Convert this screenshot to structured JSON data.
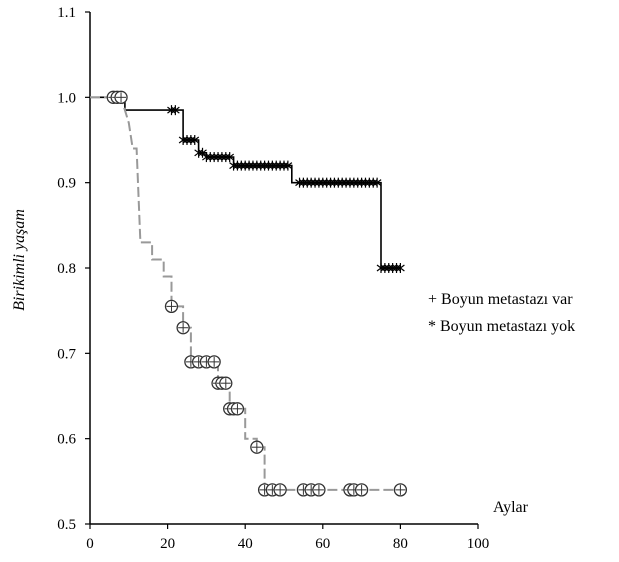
{
  "chart_data": {
    "type": "line",
    "xlabel": "Aylar",
    "ylabel": "Birikimli yaşam",
    "xlim": [
      0,
      100
    ],
    "ylim": [
      0.5,
      1.1
    ],
    "xticks": [
      "0",
      "20",
      "40",
      "60",
      "80",
      "100"
    ],
    "yticks": [
      "0.5",
      "0.6",
      "0.7",
      "0.8",
      "0.9",
      "1.0",
      "1.1"
    ],
    "legend": [
      "+ Boyun metastazı var",
      "* Boyun metastazı yok"
    ],
    "series": [
      {
        "style": "solid",
        "color": "#000000",
        "step": [
          [
            0,
            1.0
          ],
          [
            9,
            1.0
          ],
          [
            9,
            0.985
          ],
          [
            20,
            0.985
          ],
          [
            24,
            0.985
          ],
          [
            24,
            0.95
          ],
          [
            28,
            0.95
          ],
          [
            28,
            0.935
          ],
          [
            30,
            0.935
          ],
          [
            30,
            0.93
          ],
          [
            37,
            0.93
          ],
          [
            37,
            0.92
          ],
          [
            52,
            0.92
          ],
          [
            52,
            0.9
          ],
          [
            75,
            0.9
          ],
          [
            75,
            0.8
          ],
          [
            80,
            0.8
          ]
        ],
        "censored": [
          21,
          22,
          24,
          25,
          26,
          27,
          28,
          29,
          30,
          31,
          32,
          33,
          34,
          35,
          36,
          37,
          38,
          39,
          40,
          41,
          42,
          43,
          44,
          45,
          46,
          47,
          48,
          49,
          50,
          51,
          54,
          55,
          56,
          57,
          58,
          59,
          60,
          61,
          62,
          63,
          64,
          65,
          66,
          67,
          68,
          69,
          70,
          71,
          72,
          73,
          74,
          75,
          76,
          77,
          78,
          79,
          80
        ]
      },
      {
        "style": "dashed-gray",
        "color": "#999999",
        "step": [
          [
            0,
            1.0
          ],
          [
            8,
            1.0
          ],
          [
            10,
            0.97
          ],
          [
            11,
            0.94
          ],
          [
            12,
            0.94
          ],
          [
            13,
            0.83
          ],
          [
            16,
            0.83
          ],
          [
            16,
            0.81
          ],
          [
            19,
            0.81
          ],
          [
            19,
            0.79
          ],
          [
            21,
            0.79
          ],
          [
            21,
            0.755
          ],
          [
            24,
            0.755
          ],
          [
            24,
            0.73
          ],
          [
            26,
            0.73
          ],
          [
            26,
            0.69
          ],
          [
            33,
            0.69
          ],
          [
            33,
            0.665
          ],
          [
            36,
            0.665
          ],
          [
            36,
            0.635
          ],
          [
            40,
            0.635
          ],
          [
            40,
            0.6
          ],
          [
            43,
            0.6
          ],
          [
            43,
            0.59
          ],
          [
            45,
            0.59
          ],
          [
            45,
            0.54
          ],
          [
            80,
            0.54
          ]
        ],
        "censored": [
          [
            6,
            1.0
          ],
          [
            7,
            1.0
          ],
          [
            8,
            1.0
          ],
          [
            21,
            0.755
          ],
          [
            24,
            0.73
          ],
          [
            26,
            0.69
          ],
          [
            28,
            0.69
          ],
          [
            30,
            0.69
          ],
          [
            32,
            0.69
          ],
          [
            33,
            0.665
          ],
          [
            34,
            0.665
          ],
          [
            35,
            0.665
          ],
          [
            36,
            0.635
          ],
          [
            37,
            0.635
          ],
          [
            38,
            0.635
          ],
          [
            43,
            0.59
          ],
          [
            45,
            0.54
          ],
          [
            47,
            0.54
          ],
          [
            49,
            0.54
          ],
          [
            55,
            0.54
          ],
          [
            57,
            0.54
          ],
          [
            59,
            0.54
          ],
          [
            67,
            0.54
          ],
          [
            68,
            0.54
          ],
          [
            70,
            0.54
          ],
          [
            80,
            0.54
          ]
        ]
      }
    ]
  }
}
